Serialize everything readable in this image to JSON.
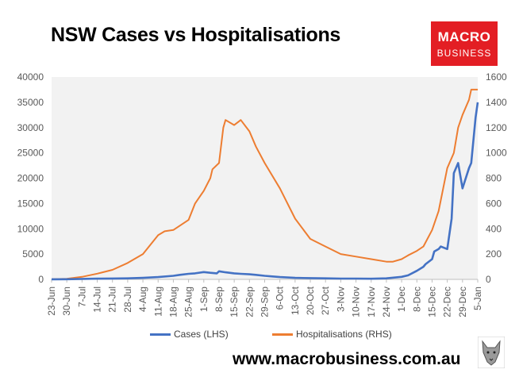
{
  "title": "NSW Cases vs Hospitalisations",
  "logo": {
    "line1": "MACRO",
    "line2": "BUSINESS"
  },
  "footer_url": "www.macrobusiness.com.au",
  "colors": {
    "cases": "#4472c4",
    "hospitalisations": "#ed7d31",
    "plot_bg": "#f2f2f2",
    "logo_bg": "#e31e24"
  },
  "chart_data": {
    "type": "line",
    "title": "NSW Cases vs Hospitalisations",
    "x_tick_labels": [
      "23-Jun",
      "30-Jun",
      "7-Jul",
      "14-Jul",
      "21-Jul",
      "28-Jul",
      "4-Aug",
      "11-Aug",
      "18-Aug",
      "25-Aug",
      "1-Sep",
      "8-Sep",
      "15-Sep",
      "22-Sep",
      "29-Sep",
      "6-Oct",
      "13-Oct",
      "20-Oct",
      "27-Oct",
      "3-Nov",
      "10-Nov",
      "17-Nov",
      "24-Nov",
      "1-Dec",
      "8-Dec",
      "15-Dec",
      "22-Dec",
      "29-Dec",
      "5-Jan"
    ],
    "y_left": {
      "label": "",
      "min": 0,
      "max": 40000,
      "ticks": [
        0,
        5000,
        10000,
        15000,
        20000,
        25000,
        30000,
        35000,
        40000
      ]
    },
    "y_right": {
      "label": "",
      "min": 0,
      "max": 1600,
      "ticks": [
        0,
        200,
        400,
        600,
        800,
        1000,
        1200,
        1400,
        1600
      ]
    },
    "grid": false,
    "legend_position": "bottom",
    "series": [
      {
        "name": "Cases (LHS)",
        "axis": "left",
        "color": "#4472c4",
        "x": [
          0,
          7,
          14,
          21,
          28,
          35,
          42,
          49,
          56,
          59,
          63,
          66,
          70,
          73,
          76,
          77,
          80,
          84,
          87,
          91,
          94,
          98,
          101,
          105,
          112,
          119,
          126,
          133,
          140,
          147,
          154,
          161,
          164,
          168,
          171,
          172,
          175,
          176,
          178,
          179,
          182,
          184,
          185,
          187,
          189,
          192,
          193,
          195,
          196
        ],
        "y": [
          10,
          30,
          90,
          140,
          170,
          200,
          300,
          450,
          700,
          900,
          1100,
          1200,
          1450,
          1300,
          1200,
          1600,
          1400,
          1200,
          1100,
          1000,
          900,
          700,
          600,
          450,
          300,
          250,
          200,
          150,
          150,
          120,
          200,
          500,
          800,
          1700,
          2500,
          3000,
          4000,
          5500,
          6000,
          6500,
          6000,
          12000,
          21000,
          23000,
          18000,
          22000,
          23000,
          32000,
          35000
        ]
      },
      {
        "name": "Hospitalisations (RHS)",
        "axis": "right",
        "color": "#ed7d31",
        "x": [
          0,
          7,
          14,
          21,
          28,
          35,
          42,
          49,
          52,
          56,
          63,
          66,
          70,
          73,
          74,
          77,
          79,
          80,
          84,
          87,
          91,
          94,
          98,
          105,
          112,
          119,
          126,
          133,
          140,
          147,
          154,
          157,
          161,
          164,
          168,
          171,
          175,
          178,
          182,
          185,
          187,
          189,
          192,
          193,
          195,
          196
        ],
        "y": [
          2,
          5,
          20,
          45,
          75,
          130,
          200,
          350,
          380,
          390,
          470,
          600,
          700,
          800,
          870,
          920,
          1200,
          1260,
          1220,
          1260,
          1170,
          1050,
          920,
          720,
          480,
          320,
          260,
          200,
          180,
          160,
          140,
          140,
          160,
          190,
          225,
          260,
          390,
          540,
          880,
          1000,
          1200,
          1300,
          1420,
          1500,
          1500,
          1500
        ]
      }
    ]
  }
}
